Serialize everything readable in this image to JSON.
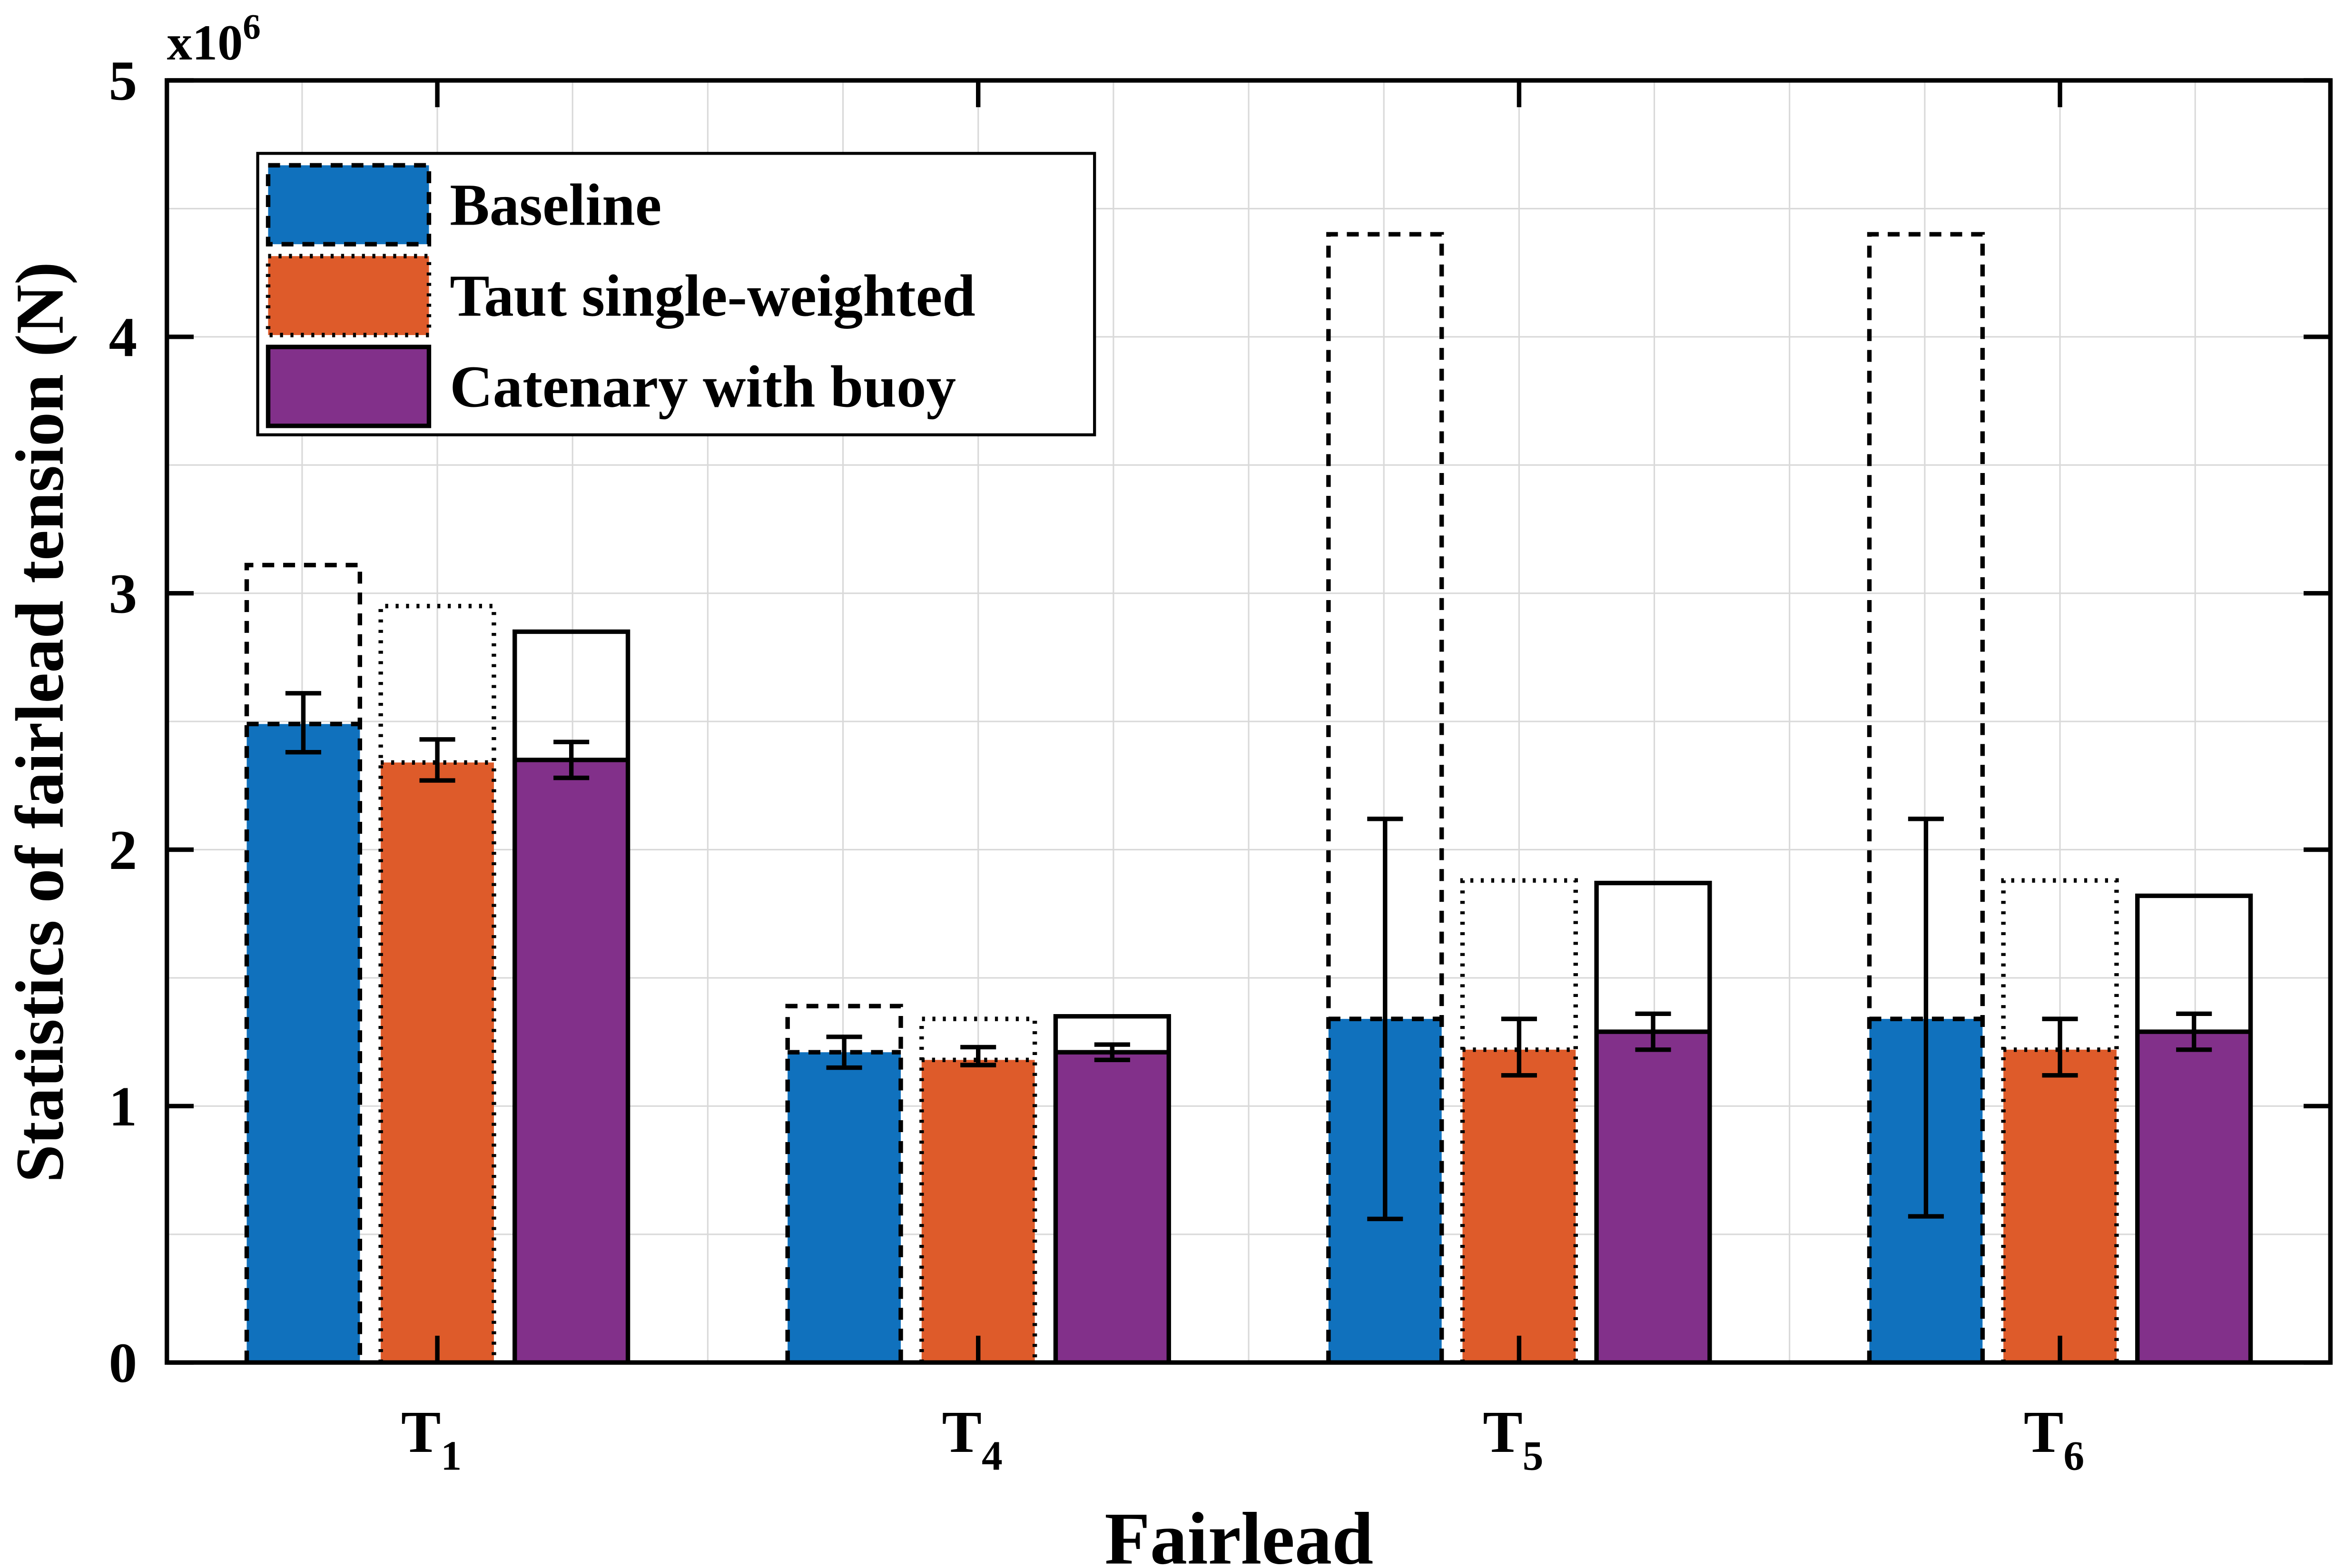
{
  "chart_data": {
    "type": "bar",
    "xlabel": "Fairlead",
    "ylabel": "Statistics of fairlead tension (N)",
    "y_multiplier": "x10",
    "y_multiplier_exp": "6",
    "ylim": [
      0,
      5
    ],
    "yticks": [
      "0",
      "1",
      "2",
      "3",
      "4",
      "5"
    ],
    "grid": true,
    "legend_placement": "top-left",
    "categories": [
      {
        "base": "T",
        "sub": "1"
      },
      {
        "base": "T",
        "sub": "4"
      },
      {
        "base": "T",
        "sub": "5"
      },
      {
        "base": "T",
        "sub": "6"
      }
    ],
    "series": [
      {
        "name": "Baseline",
        "color": "#1071BD",
        "max_outline": "dashed",
        "mean": [
          2.49,
          1.21,
          1.34,
          1.34
        ],
        "max": [
          3.11,
          1.39,
          4.4,
          4.4
        ],
        "err_low": [
          2.38,
          1.15,
          0.56,
          0.57
        ],
        "err_high": [
          2.61,
          1.27,
          2.12,
          2.12
        ]
      },
      {
        "name": "Taut single-weighted",
        "color": "#DE5B2A",
        "max_outline": "dotted",
        "mean": [
          2.34,
          1.18,
          1.22,
          1.22
        ],
        "max": [
          2.95,
          1.34,
          1.88,
          1.88
        ],
        "err_low": [
          2.27,
          1.16,
          1.12,
          1.12
        ],
        "err_high": [
          2.43,
          1.23,
          1.34,
          1.34
        ]
      },
      {
        "name": "Catenary with buoy",
        "color": "#82308A",
        "max_outline": "solid",
        "mean": [
          2.35,
          1.21,
          1.29,
          1.29
        ],
        "max": [
          2.85,
          1.35,
          1.87,
          1.82
        ],
        "err_low": [
          2.28,
          1.18,
          1.22,
          1.22
        ],
        "err_high": [
          2.42,
          1.24,
          1.36,
          1.36
        ]
      }
    ]
  }
}
